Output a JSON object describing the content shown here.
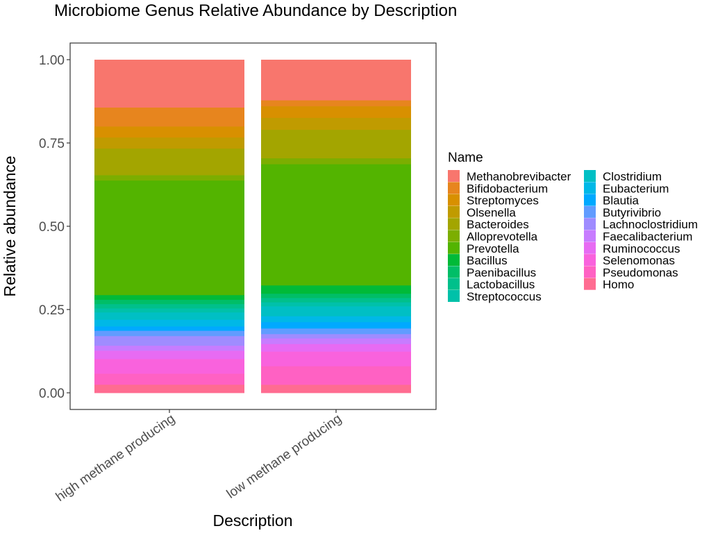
{
  "chart_data": {
    "type": "bar",
    "stacked": true,
    "title": "Microbiome Genus Relative Abundance by Description",
    "xlabel": "Description",
    "ylabel": "Relative abundance",
    "ylim": [
      0,
      1
    ],
    "yticks": [
      0.0,
      0.25,
      0.5,
      0.75,
      1.0
    ],
    "ytick_labels": [
      "0.00",
      "0.25",
      "0.50",
      "0.75",
      "1.00"
    ],
    "grid": false,
    "legend_position": "right",
    "categories": [
      "high methane producing",
      "low methane producing"
    ],
    "legend": {
      "title": "Name",
      "columns": 2
    },
    "series": [
      {
        "name": "Methanobrevibacter",
        "color": "#F8766D",
        "values": [
          0.143,
          0.122
        ]
      },
      {
        "name": "Bifidobacterium",
        "color": "#E7851E",
        "values": [
          0.057,
          0.018
        ]
      },
      {
        "name": "Streptomyces",
        "color": "#D89000",
        "values": [
          0.033,
          0.035
        ]
      },
      {
        "name": "Olsenella",
        "color": "#C09B00",
        "values": [
          0.033,
          0.036
        ]
      },
      {
        "name": "Bacteroides",
        "color": "#A3A500",
        "values": [
          0.08,
          0.086
        ]
      },
      {
        "name": "Alloprevotella",
        "color": "#7CAE00",
        "values": [
          0.016,
          0.018
        ]
      },
      {
        "name": "Prevotella",
        "color": "#53B400",
        "values": [
          0.344,
          0.366
        ]
      },
      {
        "name": "Bacillus",
        "color": "#00BA38",
        "values": [
          0.014,
          0.025
        ]
      },
      {
        "name": "Paenibacillus",
        "color": "#00BE67",
        "values": [
          0.013,
          0.013
        ]
      },
      {
        "name": "Lactobacillus",
        "color": "#00C08B",
        "values": [
          0.013,
          0.013
        ]
      },
      {
        "name": "Streptococcus",
        "color": "#00C1A9",
        "values": [
          0.012,
          0.012
        ]
      },
      {
        "name": "Clostridium",
        "color": "#00BFC4",
        "values": [
          0.022,
          0.03
        ]
      },
      {
        "name": "Eubacterium",
        "color": "#00B8E7",
        "values": [
          0.02,
          0.018
        ]
      },
      {
        "name": "Blautia",
        "color": "#00A9FF",
        "values": [
          0.013,
          0.019
        ]
      },
      {
        "name": "Butyrivibrio",
        "color": "#619CFF",
        "values": [
          0.016,
          0.017
        ]
      },
      {
        "name": "Lachnoclostridium",
        "color": "#9F8CFF",
        "values": [
          0.029,
          0.013
        ]
      },
      {
        "name": "Faecalibacterium",
        "color": "#C77CFF",
        "values": [
          0.015,
          0.017
        ]
      },
      {
        "name": "Ruminococcus",
        "color": "#E76BF3",
        "values": [
          0.025,
          0.023
        ]
      },
      {
        "name": "Selenomonas",
        "color": "#F962DD",
        "values": [
          0.044,
          0.044
        ]
      },
      {
        "name": "Pseudomonas",
        "color": "#FF61C3",
        "values": [
          0.033,
          0.056
        ]
      },
      {
        "name": "Homo",
        "color": "#FF6C91",
        "values": [
          0.025,
          0.025
        ]
      }
    ]
  }
}
